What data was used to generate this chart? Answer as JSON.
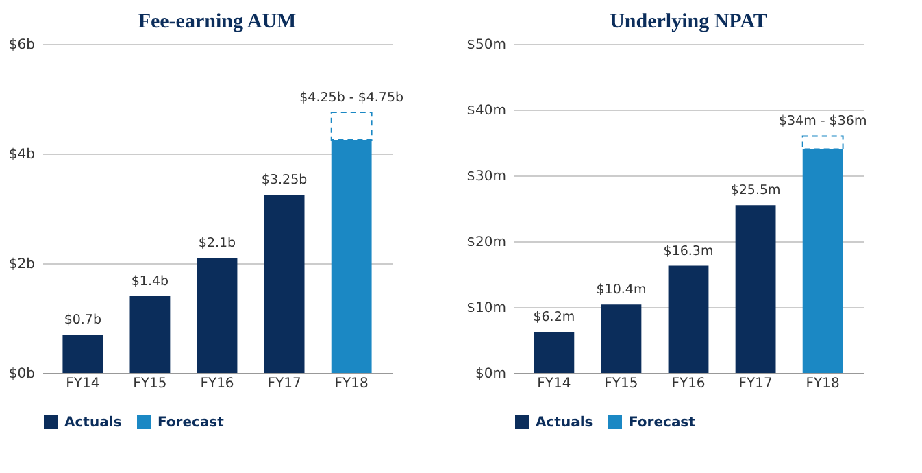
{
  "chart_data": [
    {
      "type": "bar",
      "title": "Fee-earning AUM",
      "categories": [
        "FY14",
        "FY15",
        "FY16",
        "FY17",
        "FY18"
      ],
      "stacked": true,
      "ylim": [
        0,
        6
      ],
      "yticks": [
        {
          "value": 0,
          "label": "$0b"
        },
        {
          "value": 2,
          "label": "$2b"
        },
        {
          "value": 4,
          "label": "$4b"
        },
        {
          "value": 6,
          "label": "$6b"
        }
      ],
      "grid": "y",
      "legend": "bottom",
      "annotations": [
        {
          "text": "$4.25b - $4.75b",
          "x": "FY18",
          "y": 4.75
        }
      ],
      "series": [
        {
          "name": "Actuals",
          "color": "#0b2d5b",
          "values": [
            0.7,
            1.4,
            2.1,
            3.25,
            null
          ],
          "value_labels": [
            "$0.7b",
            "$1.4b",
            "$2.1b",
            "$3.25b",
            null
          ]
        },
        {
          "name": "Forecast",
          "color": "#1b88c4",
          "values": [
            null,
            null,
            null,
            null,
            4.25
          ]
        },
        {
          "color": "#1b88c4",
          "line_style": "dashed",
          "values": [
            null,
            null,
            null,
            null,
            0.5
          ]
        }
      ]
    },
    {
      "type": "bar",
      "title": "Underlying NPAT",
      "categories": [
        "FY14",
        "FY15",
        "FY16",
        "FY17",
        "FY18"
      ],
      "stacked": true,
      "ylim": [
        0,
        50
      ],
      "yticks": [
        {
          "value": 0,
          "label": "$0m"
        },
        {
          "value": 10,
          "label": "$10m"
        },
        {
          "value": 20,
          "label": "$20m"
        },
        {
          "value": 30,
          "label": "$30m"
        },
        {
          "value": 40,
          "label": "$40m"
        },
        {
          "value": 50,
          "label": "$50m"
        }
      ],
      "grid": "y",
      "legend": "bottom",
      "annotations": [
        {
          "text": "$34m - $36m",
          "x": "FY18",
          "y": 36
        }
      ],
      "series": [
        {
          "name": "Actuals",
          "color": "#0b2d5b",
          "values": [
            6.2,
            10.4,
            16.3,
            25.5,
            null
          ],
          "value_labels": [
            "$6.2m",
            "$10.4m",
            "$16.3m",
            "$25.5m",
            null
          ]
        },
        {
          "name": "Forecast",
          "color": "#1b88c4",
          "values": [
            null,
            null,
            null,
            null,
            34
          ]
        },
        {
          "color": "#1b88c4",
          "line_style": "dashed",
          "values": [
            null,
            null,
            null,
            null,
            2
          ]
        }
      ]
    }
  ]
}
